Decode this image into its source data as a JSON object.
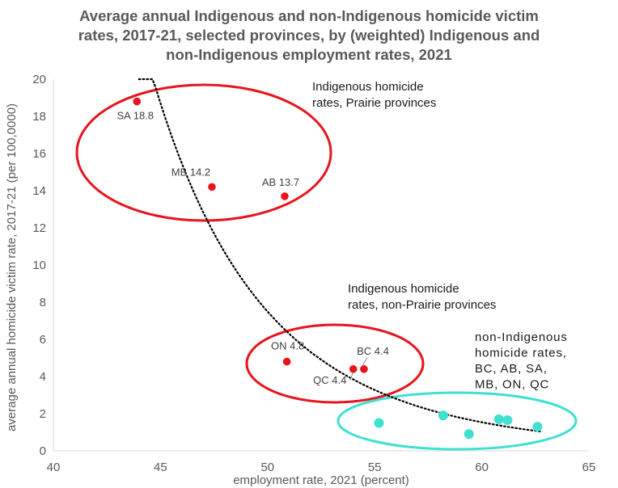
{
  "chart_data": {
    "type": "scatter",
    "title_lines": [
      "Average annual Indigenous and non-Indigenous homicide victim",
      "rates, 2017-21, selected provinces, by (weighted) Indigenous and",
      "non-Indigenous employment rates, 2021"
    ],
    "xlabel": "employment rate, 2021 (percent)",
    "ylabel": "average annual homicide victim rate, 2017-21 (per 100,0000)",
    "xlim": [
      40,
      65
    ],
    "ylim": [
      0,
      20
    ],
    "xticks": [
      40,
      45,
      50,
      55,
      60,
      65
    ],
    "yticks": [
      0,
      2,
      4,
      6,
      8,
      10,
      12,
      14,
      16,
      18,
      20
    ],
    "grid": false,
    "series": [
      {
        "color": "#e8141b",
        "points": [
          {
            "x": 43.9,
            "y": 18.8,
            "label": "SA 18.8"
          },
          {
            "x": 47.4,
            "y": 14.2,
            "label": "MB 14.2"
          },
          {
            "x": 50.8,
            "y": 13.7,
            "label": "AB 13.7"
          },
          {
            "x": 50.9,
            "y": 4.8,
            "label": "ON 4.8"
          },
          {
            "x": 54.0,
            "y": 4.4,
            "label": "QC 4.4"
          },
          {
            "x": 54.5,
            "y": 4.4,
            "label": "BC 4.4"
          }
        ]
      },
      {
        "color": "#3fe0d0",
        "points": [
          {
            "x": 55.2,
            "y": 1.5
          },
          {
            "x": 58.2,
            "y": 1.9
          },
          {
            "x": 59.4,
            "y": 0.9
          },
          {
            "x": 60.8,
            "y": 1.7
          },
          {
            "x": 61.2,
            "y": 1.65
          },
          {
            "x": 62.6,
            "y": 1.3
          }
        ]
      }
    ],
    "trendline": {
      "style": "dotted",
      "color": "#000000",
      "x_from": 44.0,
      "x_to": 62.8
    },
    "annotations": [
      {
        "lines": [
          "Indigenous homicide",
          "rates, Prairie provinces"
        ]
      },
      {
        "lines": [
          "Indigenous homicide",
          "rates, non-Prairie provinces"
        ]
      },
      {
        "lines": [
          "non-Indigenous",
          "homicide rates,",
          "BC, AB, SA,",
          "MB, ON, QC"
        ]
      }
    ],
    "groups": [
      {
        "name": "prairie",
        "color": "#e8141b"
      },
      {
        "name": "non-prairie",
        "color": "#e8141b"
      },
      {
        "name": "non-indigenous",
        "color": "#3fe0d0"
      }
    ]
  }
}
